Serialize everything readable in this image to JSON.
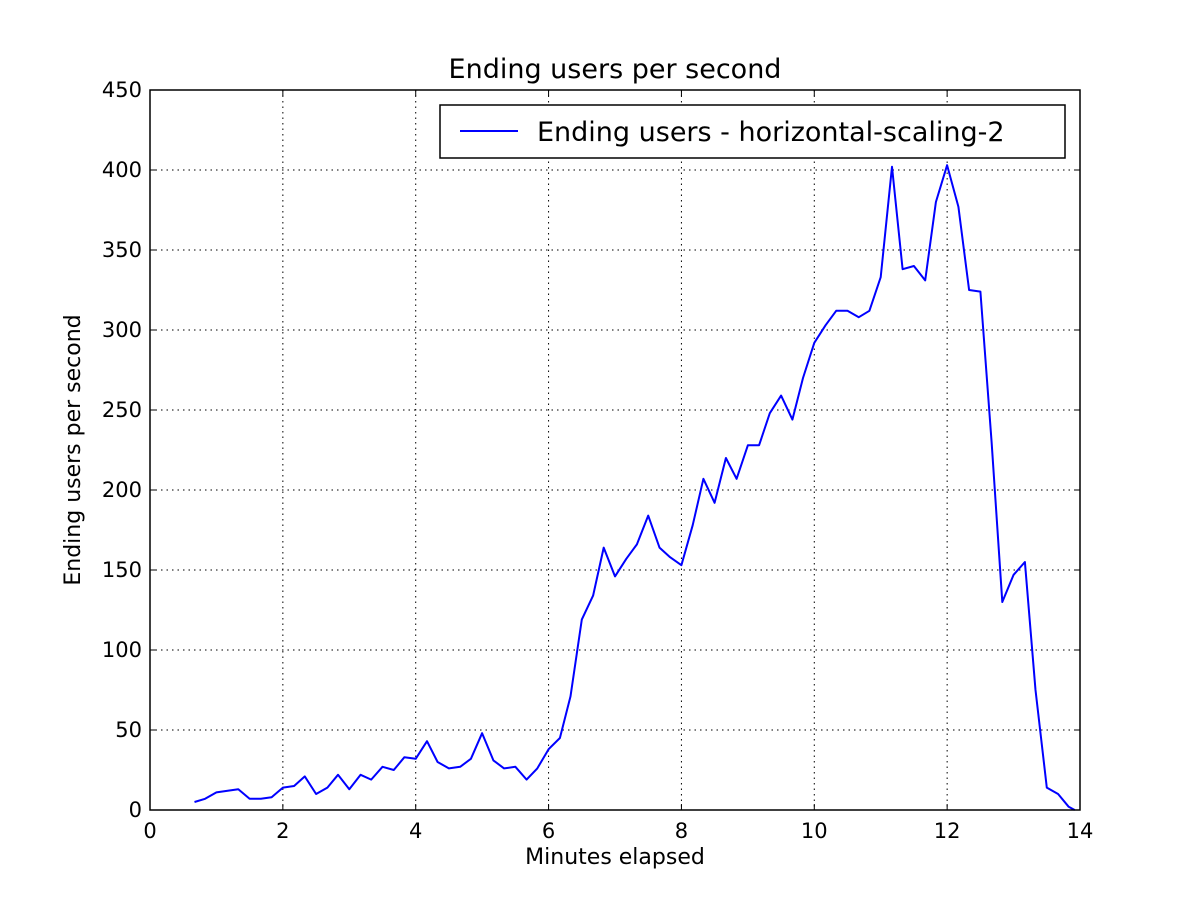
{
  "chart_data": {
    "type": "line",
    "title": "Ending users per second",
    "xlabel": "Minutes elapsed",
    "ylabel": "Ending users per second",
    "xlim": [
      0,
      14
    ],
    "ylim": [
      0,
      450
    ],
    "xticks": [
      0,
      2,
      4,
      6,
      8,
      10,
      12,
      14
    ],
    "yticks": [
      0,
      50,
      100,
      150,
      200,
      250,
      300,
      350,
      400,
      450
    ],
    "grid": true,
    "legend_position": "top-right",
    "series": [
      {
        "name": "Ending users - horizontal-scaling-2",
        "color": "#0000ff",
        "x": [
          0.67,
          0.83,
          1.0,
          1.17,
          1.33,
          1.5,
          1.67,
          1.83,
          2.0,
          2.17,
          2.33,
          2.5,
          2.67,
          2.83,
          3.0,
          3.17,
          3.33,
          3.5,
          3.67,
          3.83,
          4.0,
          4.17,
          4.33,
          4.5,
          4.67,
          4.83,
          5.0,
          5.17,
          5.33,
          5.5,
          5.67,
          5.83,
          6.0,
          6.17,
          6.33,
          6.5,
          6.67,
          6.83,
          7.0,
          7.17,
          7.33,
          7.5,
          7.67,
          7.83,
          8.0,
          8.17,
          8.33,
          8.5,
          8.67,
          8.83,
          9.0,
          9.17,
          9.33,
          9.5,
          9.67,
          9.83,
          10.0,
          10.17,
          10.33,
          10.5,
          10.67,
          10.83,
          11.0,
          11.17,
          11.33,
          11.5,
          11.67,
          11.83,
          12.0,
          12.17,
          12.33,
          12.5,
          12.67,
          12.83,
          13.0,
          13.17,
          13.33,
          13.5,
          13.67,
          13.83,
          13.92
        ],
        "y": [
          5,
          7,
          11,
          12,
          13,
          7,
          7,
          8,
          14,
          15,
          21,
          10,
          14,
          22,
          13,
          22,
          19,
          27,
          25,
          33,
          32,
          43,
          30,
          26,
          27,
          32,
          48,
          31,
          26,
          27,
          19,
          26,
          38,
          45,
          71,
          119,
          134,
          164,
          146,
          157,
          166,
          184,
          164,
          158,
          153,
          178,
          207,
          192,
          220,
          207,
          228,
          228,
          248,
          259,
          244,
          270,
          292,
          303,
          312,
          312,
          308,
          312,
          333,
          402,
          338,
          340,
          331,
          380,
          403,
          377,
          325,
          324,
          230,
          130,
          147,
          155,
          75,
          14,
          10,
          2,
          0
        ]
      }
    ]
  }
}
